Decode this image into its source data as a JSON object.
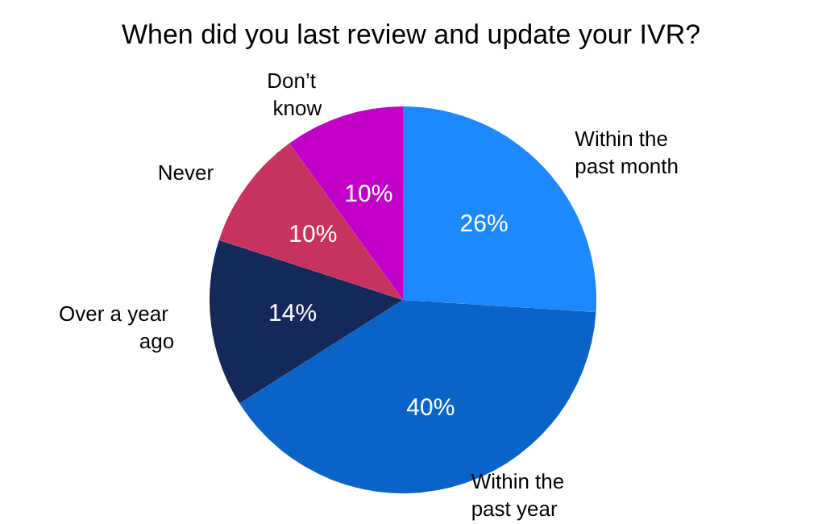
{
  "chart_data": {
    "type": "pie",
    "title": "When did you last review and update your IVR?",
    "categories": [
      "Within the past month",
      "Within the past year",
      "Over a year ago",
      "Never",
      "Don’t know"
    ],
    "values": [
      26,
      40,
      14,
      10,
      10
    ],
    "value_labels": [
      "26%",
      "40%",
      "14%",
      "10%",
      "10%"
    ],
    "colors": [
      "#1e88ff",
      "#0a64c8",
      "#14285a",
      "#c8325f",
      "#c000c8"
    ],
    "legend": false
  }
}
